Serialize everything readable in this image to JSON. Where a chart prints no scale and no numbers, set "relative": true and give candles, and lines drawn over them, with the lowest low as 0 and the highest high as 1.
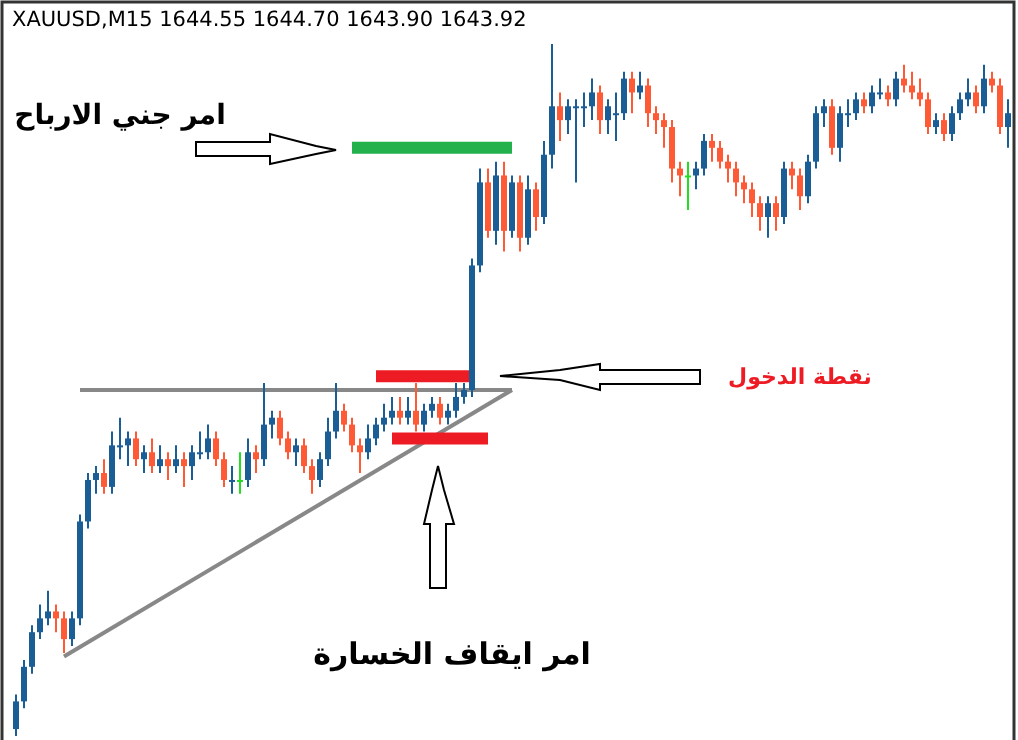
{
  "chart_data": {
    "type": "candlestick",
    "title": "XAUUSD,M15  1644.55 1644.70 1643.90 1643.92",
    "relative": true,
    "categories": [
      null,
      null,
      null,
      null,
      null,
      null,
      null,
      null,
      null,
      null,
      null,
      null,
      null,
      null,
      null,
      null,
      null,
      null,
      null,
      null,
      null,
      null,
      null,
      null,
      null,
      null,
      null,
      null,
      null,
      null,
      null,
      null,
      null,
      null,
      null,
      null,
      null,
      null,
      null,
      null,
      null,
      null,
      null,
      null,
      null,
      null,
      null,
      null,
      null,
      null,
      null,
      null,
      null,
      null,
      null,
      null,
      null,
      null,
      null,
      null,
      null,
      null,
      null,
      null,
      null,
      null,
      null,
      null,
      null,
      null,
      null,
      null,
      null,
      null,
      null,
      null,
      null,
      null,
      null,
      null,
      null,
      null,
      null,
      null,
      null,
      null,
      null,
      null,
      null,
      null,
      null,
      null,
      null,
      null,
      null,
      null,
      null,
      null,
      null,
      null,
      null,
      null,
      null,
      null,
      null,
      null,
      null,
      null,
      null,
      null,
      null,
      null,
      null,
      null,
      null,
      null,
      null,
      null,
      null,
      null,
      null,
      null,
      null,
      null,
      null
    ],
    "annotations": [
      "امر جني الارباح",
      "نقطة الدخول",
      "امر ايقاف الخسارة"
    ],
    "series": [
      {
        "type": "line",
        "color": "#888888",
        "values": [
          null,
          null,
          null,
          null,
          null,
          null,
          null,
          null,
          0.5,
          null,
          null,
          null,
          null,
          null,
          null,
          null,
          null,
          null,
          null,
          null,
          null,
          null,
          null,
          null,
          null,
          null,
          null,
          null,
          null,
          null,
          null,
          null,
          null,
          null,
          null,
          null,
          null,
          null,
          null,
          null,
          null,
          null,
          null,
          null,
          null,
          null,
          null,
          null,
          null,
          null,
          null,
          null,
          null,
          null,
          null,
          null,
          null,
          null,
          null,
          null,
          null,
          null,
          0.5,
          null,
          null,
          null,
          null,
          null,
          null,
          null,
          null,
          null,
          null,
          null,
          null,
          null,
          null,
          null,
          null,
          null,
          null,
          null,
          null,
          null,
          null,
          null,
          null,
          null,
          null,
          null,
          null,
          null,
          null,
          null,
          null,
          null,
          null,
          null,
          null,
          null,
          null,
          null,
          null,
          null,
          null,
          null,
          null,
          null,
          null,
          null,
          null,
          null,
          null,
          null,
          null,
          null,
          null,
          null,
          null,
          null,
          null,
          null,
          null,
          null,
          null
        ]
      },
      {
        "type": "line",
        "color": "#888888",
        "values": [
          null,
          null,
          null,
          null,
          null,
          null,
          0.115,
          null,
          null,
          null,
          null,
          null,
          null,
          null,
          null,
          null,
          null,
          null,
          null,
          null,
          null,
          null,
          null,
          null,
          null,
          null,
          null,
          null,
          null,
          null,
          null,
          null,
          null,
          null,
          null,
          null,
          null,
          null,
          null,
          null,
          null,
          null,
          null,
          null,
          null,
          null,
          null,
          null,
          null,
          null,
          null,
          null,
          null,
          null,
          null,
          null,
          null,
          null,
          null,
          null,
          null,
          null,
          0.5,
          null,
          null,
          null,
          null,
          null,
          null,
          null,
          null,
          null,
          null,
          null,
          null,
          null,
          null,
          null,
          null,
          null,
          null,
          null,
          null,
          null,
          null,
          null,
          null,
          null,
          null,
          null,
          null,
          null,
          null,
          null,
          null,
          null,
          null,
          null,
          null,
          null,
          null,
          null,
          null,
          null,
          null,
          null,
          null,
          null,
          null,
          null,
          null,
          null,
          null,
          null,
          null,
          null,
          null,
          null,
          null,
          null,
          null,
          null,
          null,
          null,
          null
        ]
      },
      {
        "type": "line",
        "color": "#22b14c",
        "values": [
          null,
          null,
          null,
          null,
          null,
          null,
          null,
          null,
          null,
          null,
          null,
          null,
          null,
          null,
          null,
          null,
          null,
          null,
          null,
          null,
          null,
          null,
          null,
          null,
          null,
          null,
          null,
          null,
          null,
          null,
          null,
          null,
          null,
          null,
          null,
          null,
          null,
          null,
          null,
          null,
          null,
          null,
          0.85,
          null,
          null,
          null,
          null,
          null,
          null,
          null,
          null,
          null,
          null,
          null,
          null,
          null,
          null,
          null,
          null,
          null,
          null,
          null,
          0.85,
          null,
          null,
          null,
          null,
          null,
          null,
          null,
          null,
          null,
          null,
          null,
          null,
          null,
          null,
          null,
          null,
          null,
          null,
          null,
          null,
          null,
          null,
          null,
          null,
          null,
          null,
          null,
          null,
          null,
          null,
          null,
          null,
          null,
          null,
          null,
          null,
          null,
          null,
          null,
          null,
          null,
          null,
          null,
          null,
          null,
          null,
          null,
          null,
          null,
          null,
          null,
          null,
          null,
          null,
          null,
          null,
          null,
          null,
          null,
          null,
          null,
          null
        ]
      },
      {
        "type": "line",
        "color": "#ed1c24",
        "values": [
          null,
          null,
          null,
          null,
          null,
          null,
          null,
          null,
          null,
          null,
          null,
          null,
          null,
          null,
          null,
          null,
          null,
          null,
          null,
          null,
          null,
          null,
          null,
          null,
          null,
          null,
          null,
          null,
          null,
          null,
          null,
          null,
          null,
          null,
          null,
          null,
          null,
          null,
          null,
          null,
          null,
          null,
          null,
          null,
          null,
          0.52,
          null,
          null,
          null,
          null,
          null,
          null,
          null,
          null,
          null,
          null,
          null,
          0.52,
          null,
          null,
          null,
          null,
          null,
          null,
          null,
          null,
          null,
          null,
          null,
          null,
          null,
          null,
          null,
          null,
          null,
          null,
          null,
          null,
          null,
          null,
          null,
          null,
          null,
          null,
          null,
          null,
          null,
          null,
          null,
          null,
          null,
          null,
          null,
          null,
          null,
          null,
          null,
          null,
          null,
          null,
          null,
          null,
          null,
          null,
          null,
          null,
          null,
          null,
          null,
          null,
          null,
          null,
          null,
          null,
          null,
          null,
          null,
          null,
          null,
          null,
          null,
          null,
          null,
          null,
          null
        ]
      },
      {
        "type": "line",
        "color": "#ed1c24",
        "values": [
          null,
          null,
          null,
          null,
          null,
          null,
          null,
          null,
          null,
          null,
          null,
          null,
          null,
          null,
          null,
          null,
          null,
          null,
          null,
          null,
          null,
          null,
          null,
          null,
          null,
          null,
          null,
          null,
          null,
          null,
          null,
          null,
          null,
          null,
          null,
          null,
          null,
          null,
          null,
          null,
          null,
          null,
          null,
          null,
          null,
          null,
          null,
          0.43,
          null,
          null,
          null,
          null,
          null,
          null,
          null,
          null,
          null,
          null,
          null,
          0.43,
          null,
          null,
          null,
          null,
          null,
          null,
          null,
          null,
          null,
          null,
          null,
          null,
          null,
          null,
          null,
          null,
          null,
          null,
          null,
          null,
          null,
          null,
          null,
          null,
          null,
          null,
          null,
          null,
          null,
          null,
          null,
          null,
          null,
          null,
          null,
          null,
          null,
          null,
          null,
          null,
          null,
          null,
          null,
          null,
          null,
          null,
          null,
          null,
          null,
          null,
          null,
          null,
          null,
          null,
          null,
          null,
          null,
          null,
          null,
          null,
          null,
          null,
          null,
          null,
          null
        ]
      },
      {
        "type": "candlestick",
        "ohlc": [
          [
            0.01,
            0.06,
            0,
            0.05
          ],
          [
            0.05,
            0.11,
            0.04,
            0.1
          ],
          [
            0.1,
            0.16,
            0.09,
            0.15
          ],
          [
            0.15,
            0.19,
            0.14,
            0.17
          ],
          [
            0.17,
            0.21,
            0.16,
            0.18
          ],
          [
            0.18,
            0.19,
            0.15,
            0.17
          ],
          [
            0.17,
            0.18,
            0.12,
            0.14
          ],
          [
            0.14,
            0.18,
            0.13,
            0.17
          ],
          [
            0.17,
            0.32,
            0.16,
            0.31
          ],
          [
            0.31,
            0.38,
            0.3,
            0.37
          ],
          [
            0.37,
            0.39,
            0.35,
            0.38
          ],
          [
            0.38,
            0.4,
            0.35,
            0.36
          ],
          [
            0.36,
            0.44,
            0.35,
            0.42
          ],
          [
            0.42,
            0.46,
            0.4,
            0.42
          ],
          [
            0.42,
            0.44,
            0.39,
            0.43
          ],
          [
            0.43,
            0.44,
            0.39,
            0.4
          ],
          [
            0.4,
            0.42,
            0.38,
            0.41
          ],
          [
            0.41,
            0.43,
            0.38,
            0.39
          ],
          [
            0.39,
            0.42,
            0.38,
            0.4
          ],
          [
            0.4,
            0.41,
            0.37,
            0.39
          ],
          [
            0.39,
            0.42,
            0.38,
            0.4
          ],
          [
            0.4,
            0.41,
            0.36,
            0.39
          ],
          [
            0.39,
            0.42,
            0.37,
            0.41
          ],
          [
            0.41,
            0.44,
            0.4,
            0.41
          ],
          [
            0.41,
            0.45,
            0.4,
            0.43
          ],
          [
            0.43,
            0.44,
            0.39,
            0.4
          ],
          [
            0.4,
            0.41,
            0.36,
            0.37
          ],
          [
            0.37,
            0.39,
            0.35,
            0.37
          ],
          [
            0.37,
            0.41,
            0.35,
            0.37
          ],
          [
            0.37,
            0.43,
            0.36,
            0.41
          ],
          [
            0.41,
            0.42,
            0.38,
            0.4
          ],
          [
            0.4,
            0.51,
            0.39,
            0.45
          ],
          [
            0.45,
            0.47,
            0.43,
            0.46
          ],
          [
            0.46,
            0.47,
            0.42,
            0.43
          ],
          [
            0.43,
            0.44,
            0.4,
            0.41
          ],
          [
            0.41,
            0.43,
            0.39,
            0.42
          ],
          [
            0.42,
            0.43,
            0.38,
            0.39
          ],
          [
            0.39,
            0.4,
            0.35,
            0.37
          ],
          [
            0.37,
            0.41,
            0.36,
            0.4
          ],
          [
            0.4,
            0.46,
            0.39,
            0.44
          ],
          [
            0.44,
            0.51,
            0.43,
            0.47
          ],
          [
            0.47,
            0.48,
            0.44,
            0.45
          ],
          [
            0.45,
            0.46,
            0.41,
            0.42
          ],
          [
            0.42,
            0.43,
            0.38,
            0.41
          ],
          [
            0.41,
            0.45,
            0.4,
            0.43
          ],
          [
            0.43,
            0.46,
            0.42,
            0.45
          ],
          [
            0.45,
            0.48,
            0.44,
            0.46
          ],
          [
            0.46,
            0.49,
            0.45,
            0.47
          ],
          [
            0.47,
            0.49,
            0.45,
            0.46
          ],
          [
            0.46,
            0.49,
            0.45,
            0.47
          ],
          [
            0.47,
            0.51,
            0.44,
            0.45
          ],
          [
            0.45,
            0.48,
            0.44,
            0.47
          ],
          [
            0.47,
            0.49,
            0.46,
            0.48
          ],
          [
            0.48,
            0.49,
            0.45,
            0.46
          ],
          [
            0.46,
            0.48,
            0.45,
            0.47
          ],
          [
            0.47,
            0.51,
            0.46,
            0.49
          ],
          [
            0.49,
            0.51,
            0.48,
            0.5
          ],
          [
            0.5,
            0.69,
            0.49,
            0.68
          ],
          [
            0.68,
            0.82,
            0.67,
            0.8
          ],
          [
            0.8,
            0.82,
            0.72,
            0.73
          ],
          [
            0.73,
            0.83,
            0.71,
            0.81
          ],
          [
            0.81,
            0.83,
            0.7,
            0.73
          ],
          [
            0.73,
            0.81,
            0.72,
            0.8
          ],
          [
            0.8,
            0.81,
            0.7,
            0.72
          ],
          [
            0.72,
            0.81,
            0.71,
            0.79
          ],
          [
            0.79,
            0.8,
            0.73,
            0.75
          ],
          [
            0.75,
            0.86,
            0.74,
            0.84
          ],
          [
            0.84,
            1.0,
            0.82,
            0.91
          ],
          [
            0.91,
            0.93,
            0.86,
            0.89
          ],
          [
            0.89,
            0.92,
            0.87,
            0.91
          ],
          [
            0.91,
            0.92,
            0.8,
            0.91
          ],
          [
            0.91,
            0.93,
            0.88,
            0.91
          ],
          [
            0.91,
            0.95,
            0.89,
            0.93
          ],
          [
            0.93,
            0.94,
            0.87,
            0.89
          ],
          [
            0.89,
            0.92,
            0.87,
            0.91
          ],
          [
            0.9,
            0.93,
            0.86,
            0.9
          ],
          [
            0.9,
            0.96,
            0.89,
            0.95
          ],
          [
            0.95,
            0.96,
            0.9,
            0.93
          ],
          [
            0.93,
            0.96,
            0.92,
            0.94
          ],
          [
            0.94,
            0.95,
            0.88,
            0.9
          ],
          [
            0.9,
            0.91,
            0.87,
            0.89
          ],
          [
            0.89,
            0.9,
            0.85,
            0.88
          ],
          [
            0.88,
            0.89,
            0.8,
            0.82
          ],
          [
            0.82,
            0.83,
            0.78,
            0.81
          ],
          [
            0.81,
            0.83,
            0.76,
            0.81
          ],
          [
            0.81,
            0.83,
            0.79,
            0.82
          ],
          [
            0.82,
            0.87,
            0.81,
            0.86
          ],
          [
            0.86,
            0.87,
            0.83,
            0.85
          ],
          [
            0.85,
            0.86,
            0.82,
            0.83
          ],
          [
            0.83,
            0.84,
            0.8,
            0.82
          ],
          [
            0.82,
            0.83,
            0.78,
            0.8
          ],
          [
            0.8,
            0.81,
            0.77,
            0.79
          ],
          [
            0.79,
            0.8,
            0.75,
            0.77
          ],
          [
            0.77,
            0.78,
            0.73,
            0.75
          ],
          [
            0.75,
            0.78,
            0.72,
            0.77
          ],
          [
            0.77,
            0.78,
            0.73,
            0.75
          ],
          [
            0.75,
            0.83,
            0.74,
            0.82
          ],
          [
            0.82,
            0.83,
            0.79,
            0.81
          ],
          [
            0.81,
            0.82,
            0.76,
            0.78
          ],
          [
            0.78,
            0.84,
            0.77,
            0.83
          ],
          [
            0.83,
            0.91,
            0.82,
            0.9
          ],
          [
            0.9,
            0.92,
            0.88,
            0.91
          ],
          [
            0.91,
            0.92,
            0.84,
            0.85
          ],
          [
            0.85,
            0.91,
            0.83,
            0.9
          ],
          [
            0.9,
            0.92,
            0.88,
            0.9
          ],
          [
            0.9,
            0.93,
            0.89,
            0.92
          ],
          [
            0.92,
            0.93,
            0.9,
            0.91
          ],
          [
            0.91,
            0.94,
            0.9,
            0.93
          ],
          [
            0.93,
            0.95,
            0.92,
            0.93
          ],
          [
            0.93,
            0.94,
            0.91,
            0.92
          ],
          [
            0.92,
            0.96,
            0.91,
            0.95
          ],
          [
            0.95,
            0.97,
            0.93,
            0.94
          ],
          [
            0.94,
            0.96,
            0.92,
            0.93
          ],
          [
            0.93,
            0.95,
            0.91,
            0.92
          ],
          [
            0.92,
            0.93,
            0.87,
            0.88
          ],
          [
            0.88,
            0.9,
            0.87,
            0.89
          ],
          [
            0.89,
            0.9,
            0.86,
            0.87
          ],
          [
            0.87,
            0.91,
            0.86,
            0.9
          ],
          [
            0.9,
            0.93,
            0.89,
            0.92
          ],
          [
            0.92,
            0.95,
            0.91,
            0.93
          ],
          [
            0.93,
            0.94,
            0.9,
            0.91
          ],
          [
            0.91,
            0.97,
            0.9,
            0.95
          ],
          [
            0.95,
            0.96,
            0.93,
            0.94
          ],
          [
            0.94,
            0.95,
            0.87,
            0.88
          ],
          [
            0.88,
            0.92,
            0.85,
            0.9
          ]
        ],
        "colors": [
          "#1b5e96",
          "#1b5e96",
          "#1b5e96",
          "#1b5e96",
          "#1b5e96",
          "#ff5a36",
          "#ff5a36",
          "#1b5e96",
          "#1b5e96",
          "#1b5e96",
          "#1b5e96",
          "#ff5a36",
          "#1b5e96",
          "#1b5e96",
          "#1b5e96",
          "#ff5a36",
          "#1b5e96",
          "#ff5a36",
          "#1b5e96",
          "#ff5a36",
          "#1b5e96",
          "#ff5a36",
          "#1b5e96",
          "#1b5e96",
          "#1b5e96",
          "#ff5a36",
          "#ff5a36",
          "#1b5e96",
          "#22dd22",
          "#1b5e96",
          "#ff5a36",
          "#1b5e96",
          "#1b5e96",
          "#ff5a36",
          "#ff5a36",
          "#1b5e96",
          "#ff5a36",
          "#ff5a36",
          "#1b5e96",
          "#1b5e96",
          "#1b5e96",
          "#ff5a36",
          "#ff5a36",
          "#ff5a36",
          "#1b5e96",
          "#1b5e96",
          "#1b5e96",
          "#1b5e96",
          "#ff5a36",
          "#1b5e96",
          "#ff5a36",
          "#1b5e96",
          "#1b5e96",
          "#ff5a36",
          "#1b5e96",
          "#1b5e96",
          "#1b5e96",
          "#1b5e96",
          "#1b5e96",
          "#ff5a36",
          "#1b5e96",
          "#ff5a36",
          "#1b5e96",
          "#ff5a36",
          "#1b5e96",
          "#ff5a36",
          "#1b5e96",
          "#1b5e96",
          "#ff5a36",
          "#1b5e96",
          "#1b5e96",
          "#1b5e96",
          "#1b5e96",
          "#ff5a36",
          "#1b5e96",
          "#1b5e96",
          "#1b5e96",
          "#ff5a36",
          "#1b5e96",
          "#ff5a36",
          "#ff5a36",
          "#ff5a36",
          "#ff5a36",
          "#ff5a36",
          "#22dd22",
          "#1b5e96",
          "#1b5e96",
          "#ff5a36",
          "#ff5a36",
          "#ff5a36",
          "#ff5a36",
          "#ff5a36",
          "#ff5a36",
          "#ff5a36",
          "#1b5e96",
          "#ff5a36",
          "#1b5e96",
          "#ff5a36",
          "#ff5a36",
          "#1b5e96",
          "#1b5e96",
          "#1b5e96",
          "#ff5a36",
          "#1b5e96",
          "#1b5e96",
          "#1b5e96",
          "#ff5a36",
          "#1b5e96",
          "#1b5e96",
          "#ff5a36",
          "#1b5e96",
          "#ff5a36",
          "#ff5a36",
          "#ff5a36",
          "#ff5a36",
          "#1b5e96",
          "#ff5a36",
          "#1b5e96",
          "#1b5e96",
          "#1b5e96",
          "#ff5a36",
          "#1b5e96",
          "#ff5a36",
          "#ff5a36",
          "#1b5e96"
        ]
      }
    ]
  }
}
